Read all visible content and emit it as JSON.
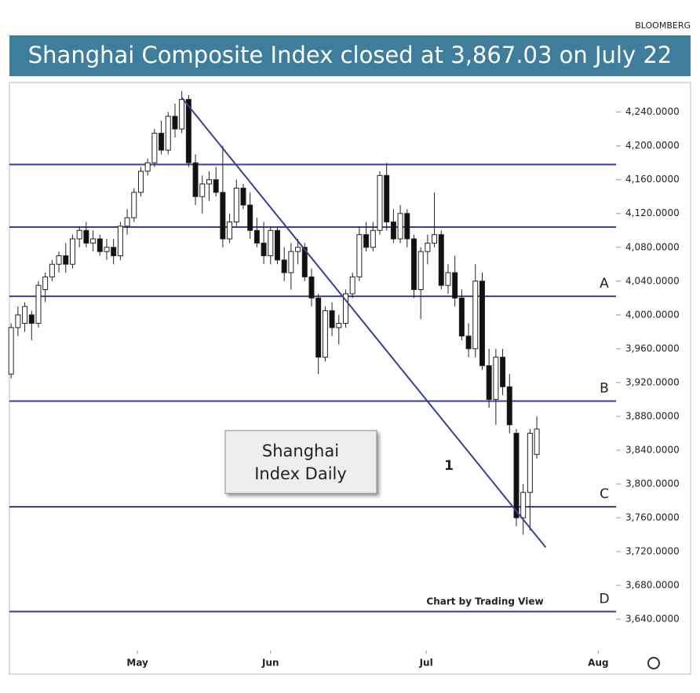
{
  "source": "BLOOMBERG",
  "chart_data": {
    "type": "candlestick",
    "title": "Shanghai Composite Index closed at 3,867.03 on July 22",
    "open": [
      3930,
      3985,
      3990,
      4000,
      3990,
      4030,
      4045,
      4060,
      4070,
      4060,
      4090,
      4100,
      4085,
      4090,
      4075,
      4080,
      4070,
      4105,
      4115,
      4145,
      4170,
      4180,
      4215,
      4195,
      4235,
      4220,
      4255,
      4180,
      4140,
      4155,
      4160,
      4145,
      4090,
      4110,
      4150,
      4130,
      4100,
      4085,
      4070,
      4100,
      4065,
      4050,
      4075,
      4080,
      4045,
      4020,
      3950,
      4005,
      3985,
      3990,
      4025,
      4045,
      4095,
      4080,
      4100,
      4165,
      4110,
      4090,
      4120,
      4090,
      4030,
      4075,
      4085,
      4095,
      4035,
      4050,
      4020,
      3975,
      3960,
      4040,
      3940,
      3900,
      3950,
      3915,
      3860,
      3760,
      3790,
      3835
    ],
    "high": [
      3990,
      4010,
      4015,
      4005,
      4040,
      4050,
      4065,
      4075,
      4085,
      4095,
      4105,
      4110,
      4100,
      4095,
      4090,
      4090,
      4110,
      4125,
      4150,
      4175,
      4185,
      4220,
      4230,
      4240,
      4250,
      4265,
      4260,
      4190,
      4165,
      4170,
      4175,
      4200,
      4120,
      4160,
      4155,
      4145,
      4115,
      4110,
      4105,
      4105,
      4080,
      4085,
      4090,
      4085,
      4055,
      4025,
      4010,
      4015,
      4000,
      4030,
      4050,
      4105,
      4110,
      4110,
      4170,
      4180,
      4125,
      4130,
      4125,
      4095,
      4080,
      4095,
      4145,
      4100,
      4060,
      4070,
      4030,
      3990,
      4060,
      4050,
      3960,
      3960,
      3960,
      3930,
      3865,
      3800,
      3865,
      3880
    ],
    "low": [
      3925,
      3975,
      3980,
      3970,
      3985,
      4015,
      4040,
      4050,
      4050,
      4055,
      4080,
      4080,
      4075,
      4070,
      4065,
      4060,
      4065,
      4095,
      4110,
      4140,
      4165,
      4175,
      4190,
      4190,
      4210,
      4215,
      4175,
      4130,
      4120,
      4135,
      4140,
      4080,
      4085,
      4105,
      4125,
      4090,
      4080,
      4060,
      4060,
      4060,
      4040,
      4030,
      4060,
      4040,
      4010,
      3930,
      3945,
      3975,
      3965,
      3985,
      4020,
      4040,
      4075,
      4075,
      4095,
      4100,
      4085,
      4085,
      4080,
      4020,
      3995,
      4060,
      4080,
      4030,
      4025,
      4010,
      3970,
      3950,
      3950,
      3935,
      3890,
      3870,
      3905,
      3860,
      3750,
      3740,
      3745,
      3830
    ],
    "close": [
      3985,
      4000,
      4010,
      3990,
      4035,
      4045,
      4060,
      4070,
      4060,
      4090,
      4100,
      4085,
      4090,
      4075,
      4080,
      4070,
      4105,
      4115,
      4145,
      4170,
      4180,
      4215,
      4195,
      4235,
      4220,
      4255,
      4180,
      4140,
      4155,
      4160,
      4145,
      4090,
      4110,
      4150,
      4130,
      4100,
      4085,
      4070,
      4100,
      4065,
      4050,
      4075,
      4080,
      4045,
      4020,
      3950,
      4005,
      3985,
      3990,
      4025,
      4045,
      4095,
      4080,
      4100,
      4165,
      4110,
      4090,
      4120,
      4090,
      4030,
      4075,
      4085,
      4095,
      4035,
      4050,
      4020,
      3975,
      3960,
      4040,
      3940,
      3900,
      3950,
      3915,
      3870,
      3760,
      3790,
      3860,
      3865
    ],
    "xlim": [
      -0.25,
      88.6
    ],
    "xticks": [
      {
        "value": 18.5,
        "label": "May"
      },
      {
        "value": 38,
        "label": "Jun"
      },
      {
        "value": 60.8,
        "label": "Jul"
      },
      {
        "value": 86,
        "label": "Aug"
      }
    ],
    "ylim": [
      3575,
      4275
    ],
    "yticks": [
      {
        "value": 4240,
        "label": "4,240.0000"
      },
      {
        "value": 4200,
        "label": "4,200.0000"
      },
      {
        "value": 4160,
        "label": "4,160.0000"
      },
      {
        "value": 4120,
        "label": "4,120.0000"
      },
      {
        "value": 4080,
        "label": "4,080.0000"
      },
      {
        "value": 4040,
        "label": "4,040.0000"
      },
      {
        "value": 4000,
        "label": "4,000.0000"
      },
      {
        "value": 3960,
        "label": "3,960.0000"
      },
      {
        "value": 3920,
        "label": "3,920.0000"
      },
      {
        "value": 3880,
        "label": "3,880.0000"
      },
      {
        "value": 3840,
        "label": "3,840.0000"
      },
      {
        "value": 3800,
        "label": "3,800.0000"
      },
      {
        "value": 3760,
        "label": "3,760.0000"
      },
      {
        "value": 3720,
        "label": "3,720.0000"
      },
      {
        "value": 3680,
        "label": "3,680.0000"
      },
      {
        "value": 3640,
        "label": "3,640.0000"
      }
    ],
    "levels": [
      {
        "value": 4178
      },
      {
        "value": 4104
      },
      {
        "value": 4022,
        "label": "A"
      },
      {
        "value": 3898,
        "label": "B"
      },
      {
        "value": 3773,
        "label": "C"
      },
      {
        "value": 3649,
        "label": "D"
      }
    ],
    "level_color": "#3b3f94",
    "trendline": {
      "x": [
        25,
        78.3
      ],
      "y": [
        4257,
        3725
      ]
    },
    "annotations": [
      "Shanghai",
      "Index Daily",
      "1",
      "Chart by Trading View"
    ]
  }
}
